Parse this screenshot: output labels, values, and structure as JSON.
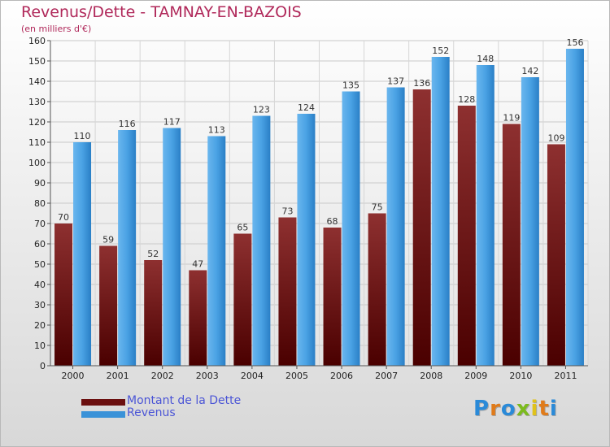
{
  "chart_data": {
    "type": "bar",
    "title": "Revenus/Dette - TAMNAY-EN-BAZOIS",
    "subtitle": "(en milliers d'€)",
    "categories": [
      "2000",
      "2001",
      "2002",
      "2003",
      "2004",
      "2005",
      "2006",
      "2007",
      "2008",
      "2009",
      "2010",
      "2011"
    ],
    "series": [
      {
        "name": "Montant de la Dette",
        "color": "#6b0f0f",
        "values": [
          70,
          59,
          52,
          47,
          65,
          73,
          68,
          75,
          136,
          128,
          119,
          109
        ]
      },
      {
        "name": "Revenus",
        "color": "#3a92d8",
        "values": [
          110,
          116,
          117,
          113,
          123,
          124,
          135,
          137,
          152,
          148,
          142,
          156
        ]
      }
    ],
    "ylim": [
      0,
      160
    ],
    "yticks": [
      0,
      10,
      20,
      30,
      40,
      50,
      60,
      70,
      80,
      90,
      100,
      110,
      120,
      130,
      140,
      150,
      160
    ],
    "grid": true,
    "legend_position": "bottom-left"
  },
  "logo": {
    "letters": [
      {
        "ch": "P",
        "color": "#2a8ad8"
      },
      {
        "ch": "r",
        "color": "#e07b1a"
      },
      {
        "ch": "o",
        "color": "#2a8ad8"
      },
      {
        "ch": "x",
        "color": "#7cbb1e"
      },
      {
        "ch": "i",
        "color": "#e0c21a"
      },
      {
        "ch": "t",
        "color": "#e07b1a"
      },
      {
        "ch": "i",
        "color": "#2a8ad8"
      }
    ]
  }
}
